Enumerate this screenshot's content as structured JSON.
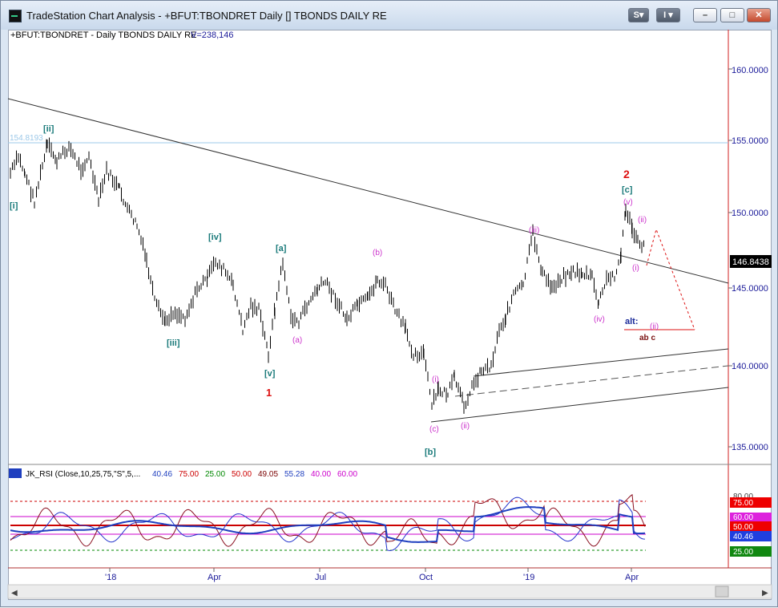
{
  "window": {
    "title": "TradeStation Chart Analysis - +BFUT:TBONDRET Daily [] TBONDS DAILY RE",
    "buttons": {
      "symbol": "S",
      "indicator": "I",
      "dropdown": "▾",
      "minimize": "–",
      "maximize": "□",
      "close": "✕"
    }
  },
  "chart": {
    "header": {
      "symbol": "+BFUT:TBONDRET - Daily  TBONDS DAILY RE",
      "volume": "V=238,146"
    },
    "last_price_label": "146.8438",
    "high_line_label": "154.8193",
    "price_axis_ticks": [
      "160.0000",
      "155.0000",
      "150.0000",
      "145.0000",
      "140.0000",
      "135.0000"
    ],
    "time_axis_ticks": [
      "'18",
      "Apr",
      "Jul",
      "Oct",
      "'19",
      "Apr"
    ],
    "wave_labels": {
      "ii_major": "[ii]",
      "i_major": "[i]",
      "iii_major": "[iii]",
      "iv_major": "[iv]",
      "v_major": "[v]",
      "one": "1",
      "a_major": "[a]",
      "b_major": "[b]",
      "c_major": "[c]",
      "two": "2",
      "a_minor": "(a)",
      "b_minor": "(b)",
      "c_minor": "(c)",
      "i_minor_1": "(i)",
      "ii_minor_1": "(ii)",
      "iii_minor": "(iii)",
      "iv_minor": "(iv)",
      "v_minor": "(v)",
      "i_minor_2": "(i)",
      "ii_minor_2": "(ii)",
      "alt": "alt:",
      "ii_alt": "(ii)",
      "abc": "ab  c"
    }
  },
  "indicator": {
    "header": {
      "name": "JK_RSI (Close,10,25,75,\"S\",5,...",
      "v1": "40.46",
      "v2": "75.00",
      "v3": "25.00",
      "v4": "50.00",
      "v5": "49.05",
      "v6": "55.28",
      "v7": "40.00",
      "v8": "60.00"
    },
    "axis_labels": [
      "80.00",
      "75.00",
      "60.00",
      "50.00",
      "40.46",
      "25.00"
    ],
    "colors": {
      "v1": "#1f3fbf",
      "v2": "#cc0000",
      "v3": "#008800",
      "v4": "#cc0000",
      "v5": "#7a0000",
      "v6": "#1f3fbf",
      "v7": "#cc00cc",
      "v8": "#cc00cc"
    }
  },
  "colors": {
    "price_bars": "#000000",
    "wave_teal": "#1a7a7a",
    "wave_magenta": "#cc33cc",
    "wave_red": "#dd1111",
    "axis_text": "#1a1a99",
    "alt_blue": "#1a2a99"
  }
}
